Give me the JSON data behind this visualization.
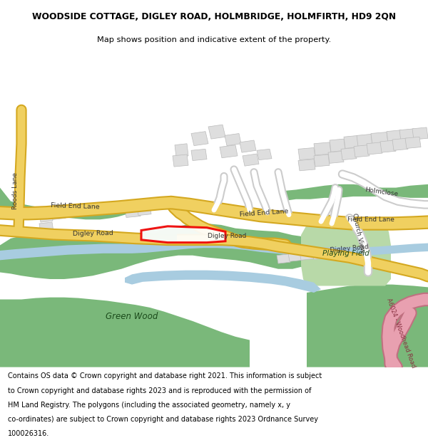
{
  "title": "WOODSIDE COTTAGE, DIGLEY ROAD, HOLMBRIDGE, HOLMFIRTH, HD9 2QN",
  "subtitle": "Map shows position and indicative extent of the property.",
  "footer_lines": [
    "Contains OS data © Crown copyright and database right 2021. This information is subject",
    "to Crown copyright and database rights 2023 and is reproduced with the permission of",
    "HM Land Registry. The polygons (including the associated geometry, namely x, y",
    "co-ordinates) are subject to Crown copyright and database rights 2023 Ordnance Survey",
    "100026316."
  ],
  "map_bg": "#f7f5f0",
  "road_yellow": "#f0d060",
  "road_yellow_border": "#d4a820",
  "road_white": "#ffffff",
  "road_white_border": "#cccccc",
  "green_dark": "#7ab87a",
  "green_light": "#b8d9a8",
  "water_blue": "#a8cce0",
  "building_fill": "#dedede",
  "building_edge": "#bbbbbb",
  "pink_road": "#e8a0b0",
  "pink_road_border": "#c07080",
  "red_outline": "#ee0000",
  "text_dark": "#222222",
  "text_road": "#444444"
}
